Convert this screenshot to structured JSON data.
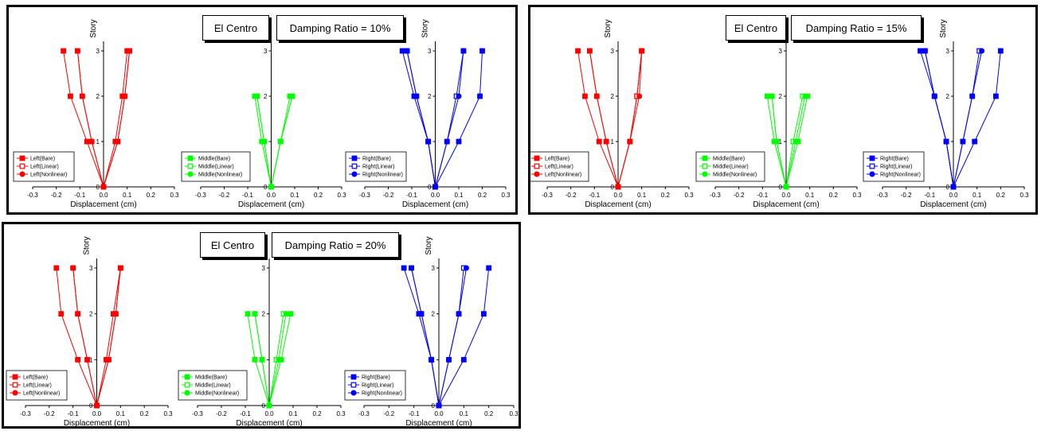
{
  "common": {
    "xlabel": "Displacement (cm)",
    "ylabel": "Story",
    "xticks": [
      "-0.3",
      "-0.2",
      "-0.1",
      "0.0",
      "0.1",
      "0.2",
      "0.3"
    ],
    "yticks": [
      "0",
      "1",
      "2",
      "3"
    ]
  },
  "colors": {
    "Left": "#ff0000",
    "Middle": "#00ff00",
    "Right": "#0000ff"
  },
  "chart_data": [
    {
      "type": "line",
      "panel": "damping-10",
      "labels": {
        "record": "El Centro",
        "damping": "Damping Ratio = 10%"
      },
      "xlabel": "Displacement (cm)",
      "ylabel": "Story",
      "xlim": [
        -0.3,
        0.3
      ],
      "ylim": [
        0,
        3
      ],
      "grid": false,
      "groups": [
        {
          "position": "Left",
          "legend": "lower-left",
          "series": [
            {
              "name": "Left(Bare)",
              "marker": "square-filled",
              "x": [
                0,
                -0.07,
                -0.14,
                -0.17
              ]
            },
            {
              "name": "Left(Bare)",
              "marker": "square-filled",
              "x": [
                0,
                0.05,
                0.08,
                0.1
              ]
            },
            {
              "name": "Left(Linear)",
              "marker": "square-open",
              "x": [
                0,
                -0.05,
                -0.09,
                -0.11
              ]
            },
            {
              "name": "Left(Linear)",
              "marker": "square-open",
              "x": [
                0,
                0.06,
                0.09,
                0.11
              ]
            },
            {
              "name": "Left(Nonlinear)",
              "marker": "circle-filled",
              "x": [
                0,
                -0.05,
                -0.09,
                -0.11
              ]
            },
            {
              "name": "Left(Nonlinear)",
              "marker": "circle-filled",
              "x": [
                0,
                0.06,
                0.09,
                0.11
              ]
            }
          ]
        },
        {
          "position": "Middle",
          "legend": "lower-left",
          "series": [
            {
              "name": "Middle(Bare)",
              "marker": "square-filled",
              "x": [
                0,
                -0.04,
                -0.07
              ]
            },
            {
              "name": "Middle(Bare)",
              "marker": "square-filled",
              "x": [
                0,
                0.04,
                0.08
              ]
            },
            {
              "name": "Middle(Linear)",
              "marker": "square-open",
              "x": [
                0,
                -0.03,
                -0.06
              ]
            },
            {
              "name": "Middle(Linear)",
              "marker": "square-open",
              "x": [
                0,
                0.04,
                0.09
              ]
            },
            {
              "name": "Middle(Nonlinear)",
              "marker": "circle-filled",
              "x": [
                0,
                -0.03,
                -0.06
              ]
            },
            {
              "name": "Middle(Nonlinear)",
              "marker": "circle-filled",
              "x": [
                0,
                0.04,
                0.09
              ]
            }
          ]
        },
        {
          "position": "Right",
          "legend": "lower-left",
          "series": [
            {
              "name": "Right(Bare)",
              "marker": "square-filled",
              "x": [
                0,
                -0.03,
                -0.09,
                -0.14
              ]
            },
            {
              "name": "Right(Bare)",
              "marker": "square-filled",
              "x": [
                0,
                0.1,
                0.19,
                0.2
              ]
            },
            {
              "name": "Right(Linear)",
              "marker": "square-open",
              "x": [
                0,
                -0.03,
                -0.08,
                -0.12
              ]
            },
            {
              "name": "Right(Linear)",
              "marker": "square-open",
              "x": [
                0,
                0.05,
                0.09,
                0.12
              ]
            },
            {
              "name": "Right(Nonlinear)",
              "marker": "circle-filled",
              "x": [
                0,
                -0.03,
                -0.08,
                -0.12
              ]
            },
            {
              "name": "Right(Nonlinear)",
              "marker": "circle-filled",
              "x": [
                0,
                0.05,
                0.1,
                0.12
              ]
            }
          ]
        }
      ]
    },
    {
      "type": "line",
      "panel": "damping-15",
      "labels": {
        "record": "El Centro",
        "damping": "Damping Ratio = 15%"
      },
      "xlabel": "Displacement (cm)",
      "ylabel": "Story",
      "xlim": [
        -0.3,
        0.3
      ],
      "ylim": [
        0,
        3
      ],
      "grid": false,
      "groups": [
        {
          "position": "Left",
          "legend": "lower-left",
          "series": [
            {
              "name": "Left(Bare)",
              "marker": "square-filled",
              "x": [
                0,
                -0.08,
                -0.14,
                -0.17
              ]
            },
            {
              "name": "Left(Bare)",
              "marker": "square-filled",
              "x": [
                0,
                0.05,
                0.08,
                0.1
              ]
            },
            {
              "name": "Left(Linear)",
              "marker": "square-open",
              "x": [
                0,
                -0.05,
                -0.09,
                -0.12
              ]
            },
            {
              "name": "Left(Linear)",
              "marker": "square-open",
              "x": [
                0,
                0.05,
                0.08,
                0.1
              ]
            },
            {
              "name": "Left(Nonlinear)",
              "marker": "circle-filled",
              "x": [
                0,
                -0.05,
                -0.09,
                -0.12
              ]
            },
            {
              "name": "Left(Nonlinear)",
              "marker": "circle-filled",
              "x": [
                0,
                0.05,
                0.09,
                0.1
              ]
            }
          ]
        },
        {
          "position": "Middle",
          "legend": "lower-left",
          "series": [
            {
              "name": "Middle(Bare)",
              "marker": "square-filled",
              "x": [
                0,
                -0.05,
                -0.08
              ]
            },
            {
              "name": "Middle(Bare)",
              "marker": "square-filled",
              "x": [
                0,
                0.05,
                0.09
              ]
            },
            {
              "name": "Middle(Linear)",
              "marker": "square-open",
              "x": [
                0,
                -0.04,
                -0.06
              ]
            },
            {
              "name": "Middle(Linear)",
              "marker": "square-open",
              "x": [
                0,
                0.03,
                0.07
              ]
            },
            {
              "name": "Middle(Nonlinear)",
              "marker": "circle-filled",
              "x": [
                0,
                -0.04,
                -0.06
              ]
            },
            {
              "name": "Middle(Nonlinear)",
              "marker": "circle-filled",
              "x": [
                0,
                0.04,
                0.08
              ]
            }
          ]
        },
        {
          "position": "Right",
          "legend": "lower-left",
          "series": [
            {
              "name": "Right(Bare)",
              "marker": "square-filled",
              "x": [
                0,
                -0.03,
                -0.08,
                -0.14
              ]
            },
            {
              "name": "Right(Bare)",
              "marker": "square-filled",
              "x": [
                0,
                0.09,
                0.18,
                0.2
              ]
            },
            {
              "name": "Right(Linear)",
              "marker": "square-open",
              "x": [
                0,
                -0.03,
                -0.08,
                -0.12
              ]
            },
            {
              "name": "Right(Linear)",
              "marker": "square-open",
              "x": [
                0,
                0.04,
                0.08,
                0.11
              ]
            },
            {
              "name": "Right(Nonlinear)",
              "marker": "circle-filled",
              "x": [
                0,
                -0.03,
                -0.08,
                -0.12
              ]
            },
            {
              "name": "Right(Nonlinear)",
              "marker": "circle-filled",
              "x": [
                0,
                0.04,
                0.08,
                0.12
              ]
            }
          ]
        }
      ]
    },
    {
      "type": "line",
      "panel": "damping-20",
      "labels": {
        "record": "El Centro",
        "damping": "Damping Ratio = 20%"
      },
      "xlabel": "Displacement (cm)",
      "ylabel": "Story",
      "xlim": [
        -0.3,
        0.3
      ],
      "ylim": [
        0,
        3
      ],
      "grid": false,
      "groups": [
        {
          "position": "Left",
          "legend": "lower-left",
          "series": [
            {
              "name": "Left(Bare)",
              "marker": "square-filled",
              "x": [
                0,
                -0.08,
                -0.15,
                -0.17
              ]
            },
            {
              "name": "Left(Bare)",
              "marker": "square-filled",
              "x": [
                0,
                0.04,
                0.07,
                0.1
              ]
            },
            {
              "name": "Left(Linear)",
              "marker": "square-open",
              "x": [
                0,
                -0.04,
                -0.08,
                -0.1
              ]
            },
            {
              "name": "Left(Linear)",
              "marker": "square-open",
              "x": [
                0,
                0.05,
                0.08,
                0.1
              ]
            },
            {
              "name": "Left(Nonlinear)",
              "marker": "circle-filled",
              "x": [
                0,
                -0.04,
                -0.08,
                -0.1
              ]
            },
            {
              "name": "Left(Nonlinear)",
              "marker": "circle-filled",
              "x": [
                0,
                0.05,
                0.08,
                0.1
              ]
            }
          ]
        },
        {
          "position": "Middle",
          "legend": "lower-left",
          "series": [
            {
              "name": "Middle(Bare)",
              "marker": "square-filled",
              "x": [
                0,
                -0.06,
                -0.09
              ]
            },
            {
              "name": "Middle(Bare)",
              "marker": "square-filled",
              "x": [
                0,
                0.05,
                0.09
              ]
            },
            {
              "name": "Middle(Linear)",
              "marker": "square-open",
              "x": [
                0,
                -0.03,
                -0.06
              ]
            },
            {
              "name": "Middle(Linear)",
              "marker": "square-open",
              "x": [
                0,
                0.03,
                0.06
              ]
            },
            {
              "name": "Middle(Nonlinear)",
              "marker": "circle-filled",
              "x": [
                0,
                -0.03,
                -0.06
              ]
            },
            {
              "name": "Middle(Nonlinear)",
              "marker": "circle-filled",
              "x": [
                0,
                0.04,
                0.07
              ]
            }
          ]
        },
        {
          "position": "Right",
          "legend": "lower-left",
          "series": [
            {
              "name": "Right(Bare)",
              "marker": "square-filled",
              "x": [
                0,
                -0.03,
                -0.08,
                -0.14
              ]
            },
            {
              "name": "Right(Bare)",
              "marker": "square-filled",
              "x": [
                0,
                0.1,
                0.18,
                0.2
              ]
            },
            {
              "name": "Right(Linear)",
              "marker": "square-open",
              "x": [
                0,
                -0.03,
                -0.07,
                -0.11
              ]
            },
            {
              "name": "Right(Linear)",
              "marker": "square-open",
              "x": [
                0,
                0.04,
                0.08,
                0.1
              ]
            },
            {
              "name": "Right(Nonlinear)",
              "marker": "circle-filled",
              "x": [
                0,
                -0.03,
                -0.07,
                -0.11
              ]
            },
            {
              "name": "Right(Nonlinear)",
              "marker": "circle-filled",
              "x": [
                0,
                0.04,
                0.08,
                0.11
              ]
            }
          ]
        }
      ]
    }
  ]
}
